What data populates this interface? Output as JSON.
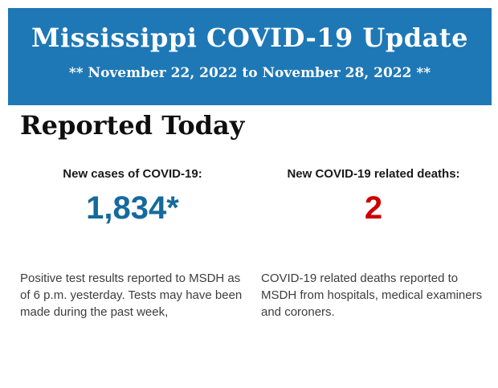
{
  "header": {
    "title": "Mississippi COVID-19 Update",
    "date_range": "** November 22, 2022 to November 28, 2022 **",
    "background_color": "#1E78B6",
    "text_color": "#FFFFFF"
  },
  "section": {
    "heading": "Reported Today"
  },
  "stats": {
    "cases": {
      "label": "New cases of COVID-19:",
      "value": "1,834*",
      "value_color": "#16699C",
      "description": "Positive test results reported to MSDH as of 6 p.m. yesterday. Tests may have been made during the past week,"
    },
    "deaths": {
      "label": "New COVID-19 related deaths:",
      "value": "2",
      "value_color": "#CC0000",
      "description": "COVID-19 related deaths reported to MSDH from hospitals, medical examiners and coroners."
    }
  }
}
